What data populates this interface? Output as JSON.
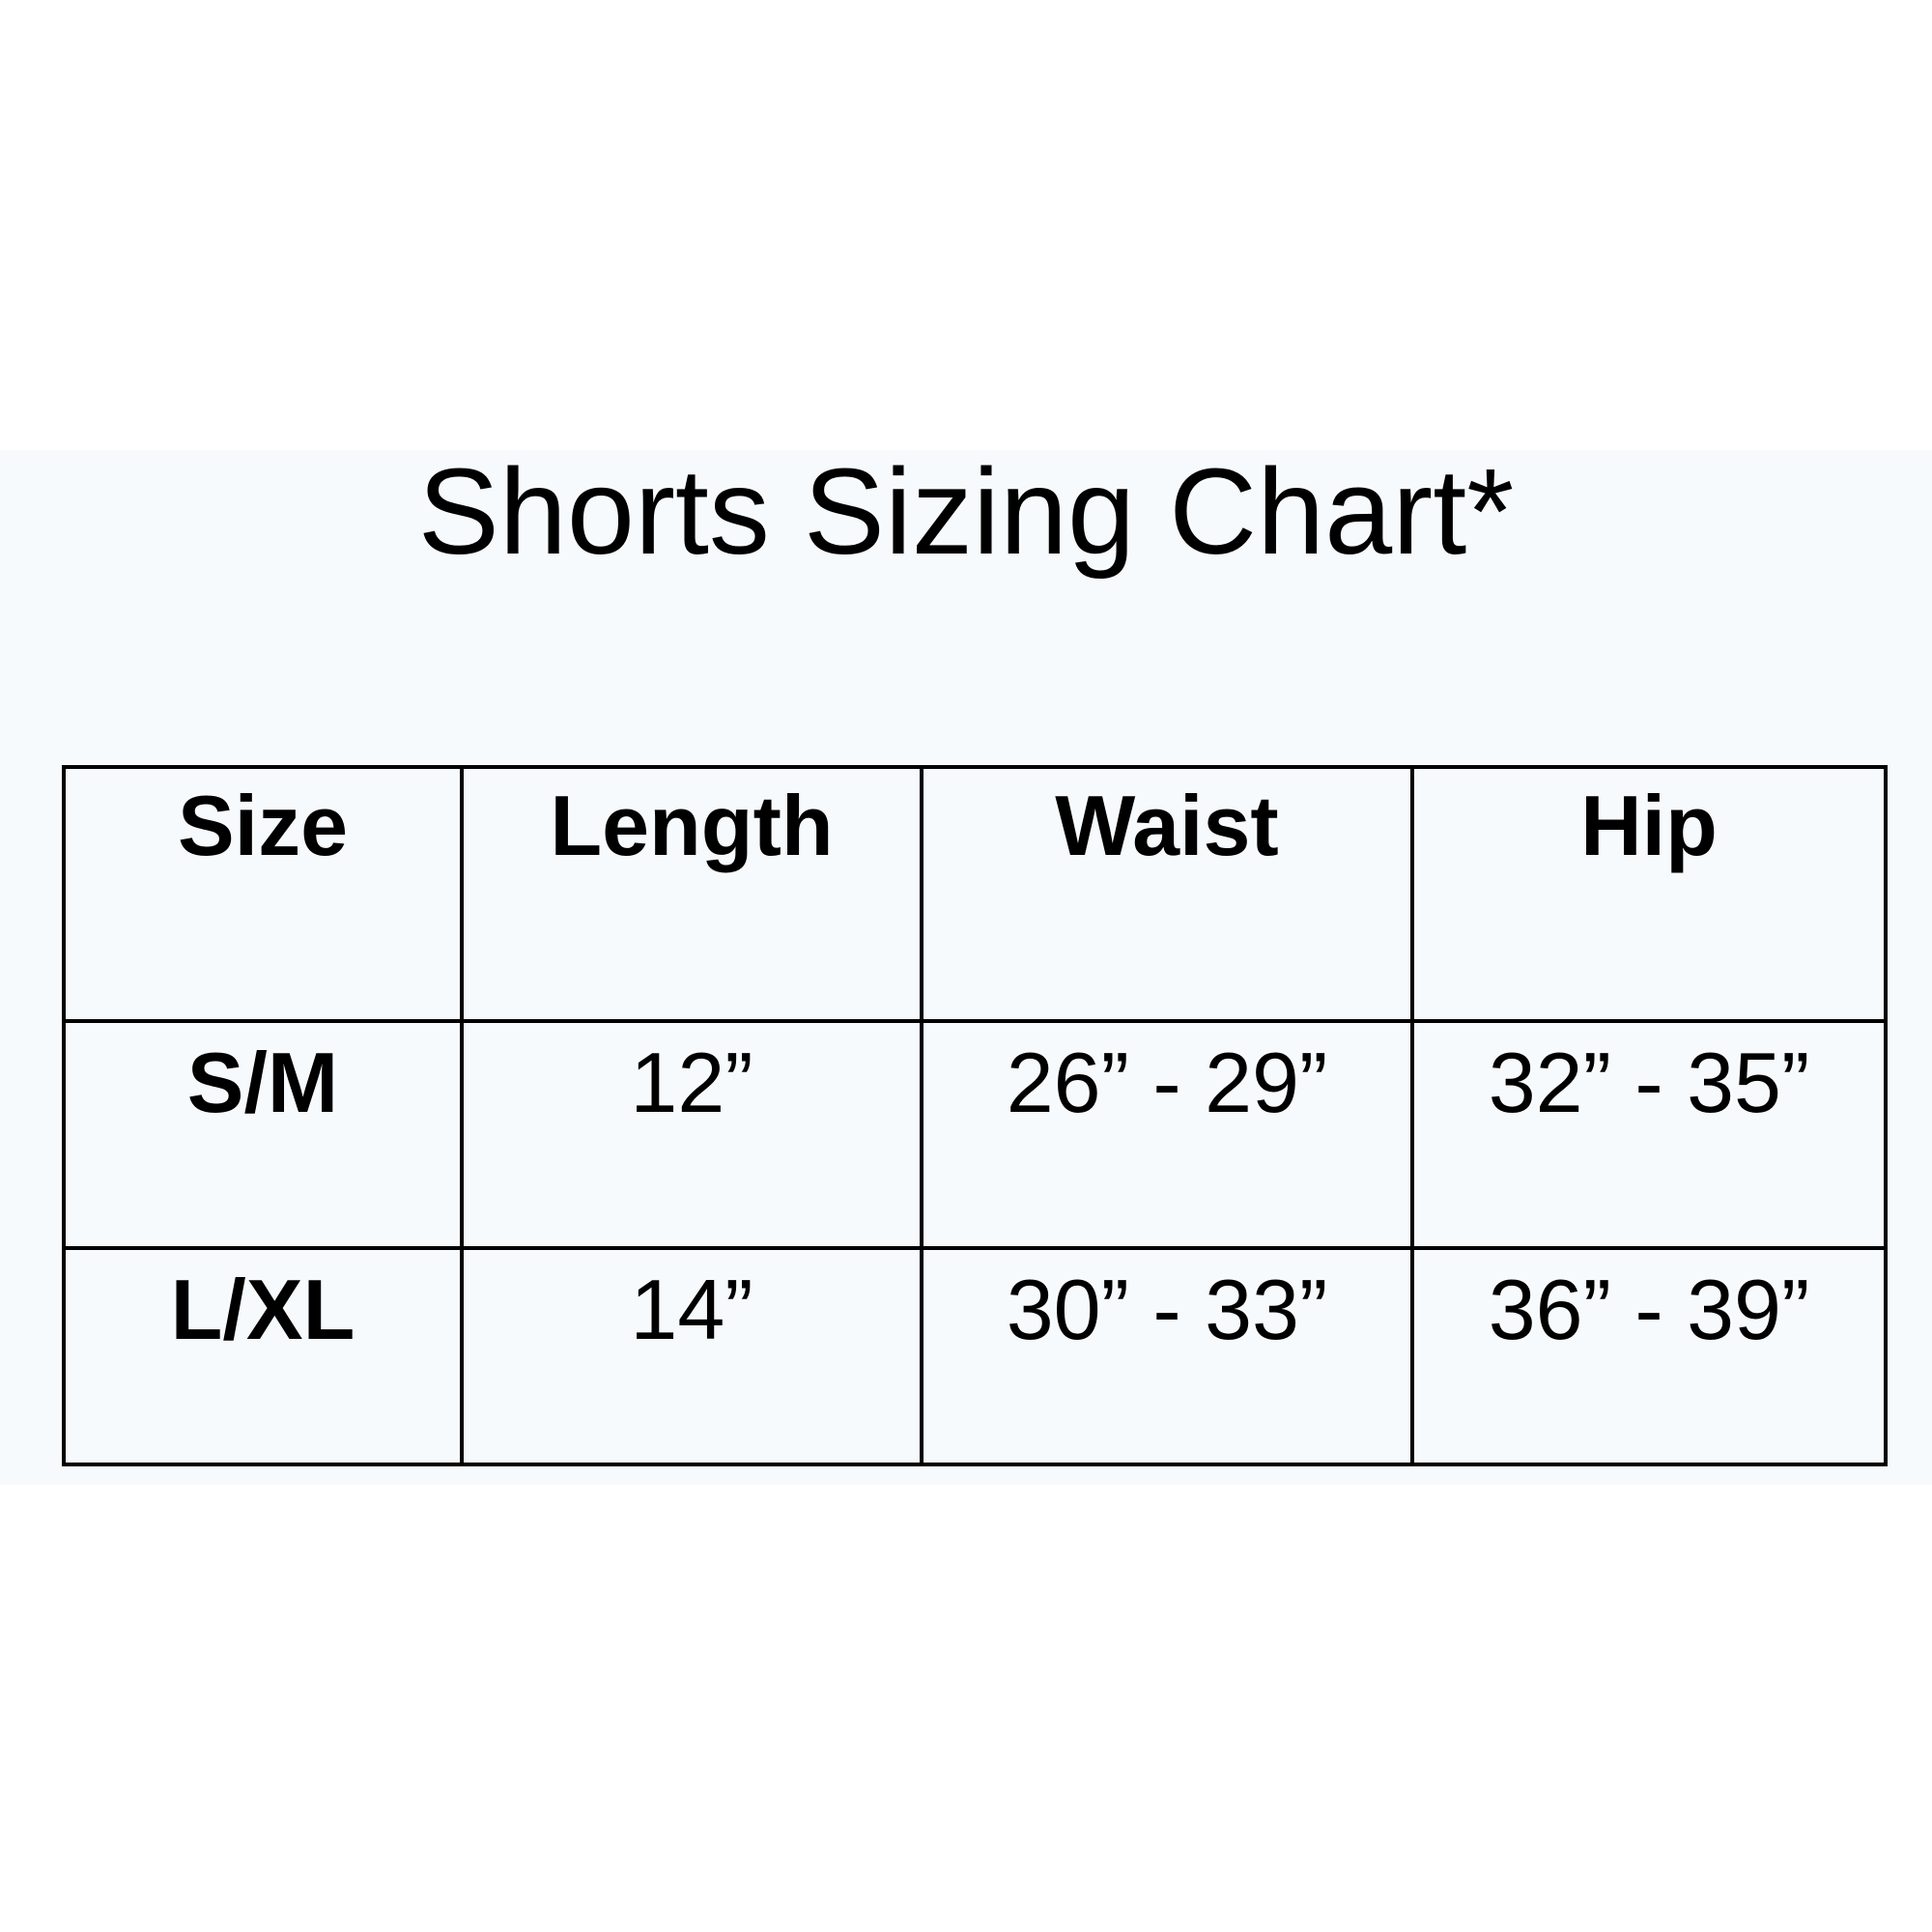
{
  "title": "Shorts Sizing Chart*",
  "table": {
    "headers": [
      "Size",
      "Length",
      "Waist",
      "Hip"
    ],
    "rows": [
      [
        "S/M",
        "12”",
        "26” - 29”",
        "32” - 35”"
      ],
      [
        "L/XL",
        "14”",
        "30” - 33”",
        "36” - 39”"
      ]
    ]
  },
  "colors": {
    "panel_background": "#f7fafc",
    "border": "#000000",
    "text": "#000000"
  }
}
